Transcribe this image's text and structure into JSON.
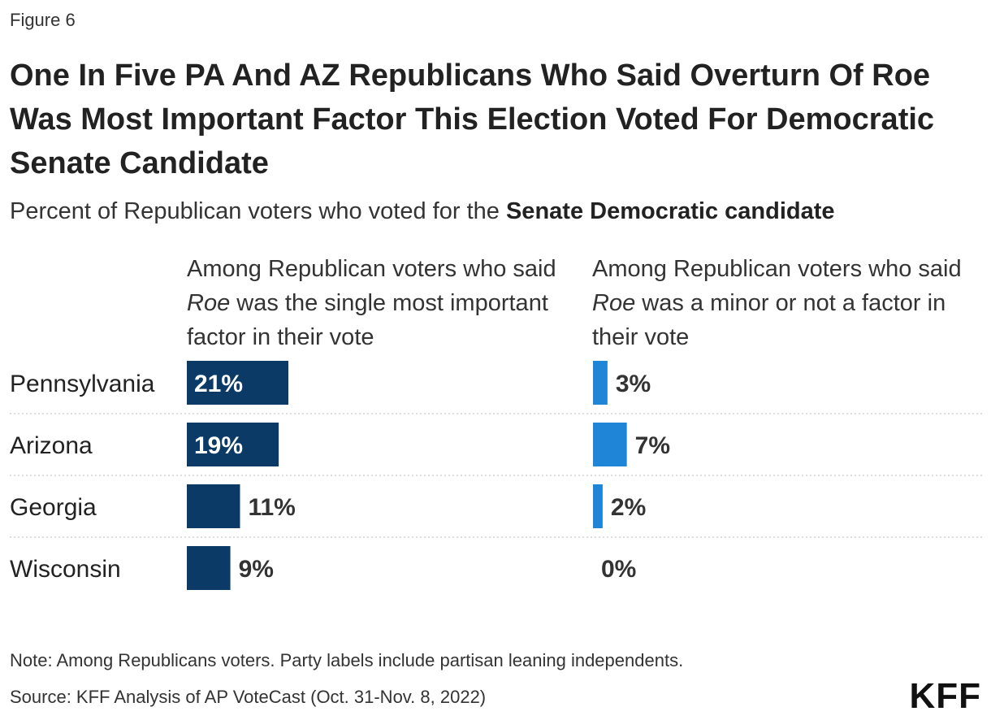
{
  "figure_label": "Figure 6",
  "title": "One In Five PA And AZ Republicans Who Said Overturn Of Roe Was Most Important Factor This Election Voted For Democratic Senate Candidate",
  "subtitle_prefix": "Percent of Republican voters who voted for the ",
  "subtitle_bold": "Senate Democratic candidate",
  "column_headers": [
    {
      "pre": "Among Republican voters who said ",
      "em": "Roe",
      "post": " was the single most important factor in their vote"
    },
    {
      "pre": "Among Republican voters who said ",
      "em": "Roe",
      "post": " was a minor or not a factor in their vote"
    }
  ],
  "note": "Note: Among Republicans voters. Party labels include partisan leaning independents.",
  "source": "Source: KFF Analysis of AP VoteCast (Oct. 31-Nov. 8, 2022)",
  "logo": "KFF",
  "chart_data": {
    "type": "bar",
    "orientation": "horizontal",
    "categories": [
      "Pennsylvania",
      "Arizona",
      "Georgia",
      "Wisconsin"
    ],
    "series": [
      {
        "name": "Among Republican voters who said Roe was the single most important factor in their vote",
        "values": [
          21,
          19,
          11,
          9
        ],
        "labels": [
          "21%",
          "19%",
          "11%",
          "9%"
        ],
        "color": "#0b3a66"
      },
      {
        "name": "Among Republican voters who said Roe was a minor or not a factor in their vote",
        "values": [
          3,
          7,
          2,
          0
        ],
        "labels": [
          "3%",
          "7%",
          "2%",
          "0%"
        ],
        "color": "#1f85d6"
      }
    ],
    "title": "One In Five PA And AZ Republicans Who Said Overturn Of Roe Was Most Important Factor This Election Voted For Democratic Senate Candidate",
    "unit": "%",
    "xlim": [
      0,
      21
    ]
  }
}
